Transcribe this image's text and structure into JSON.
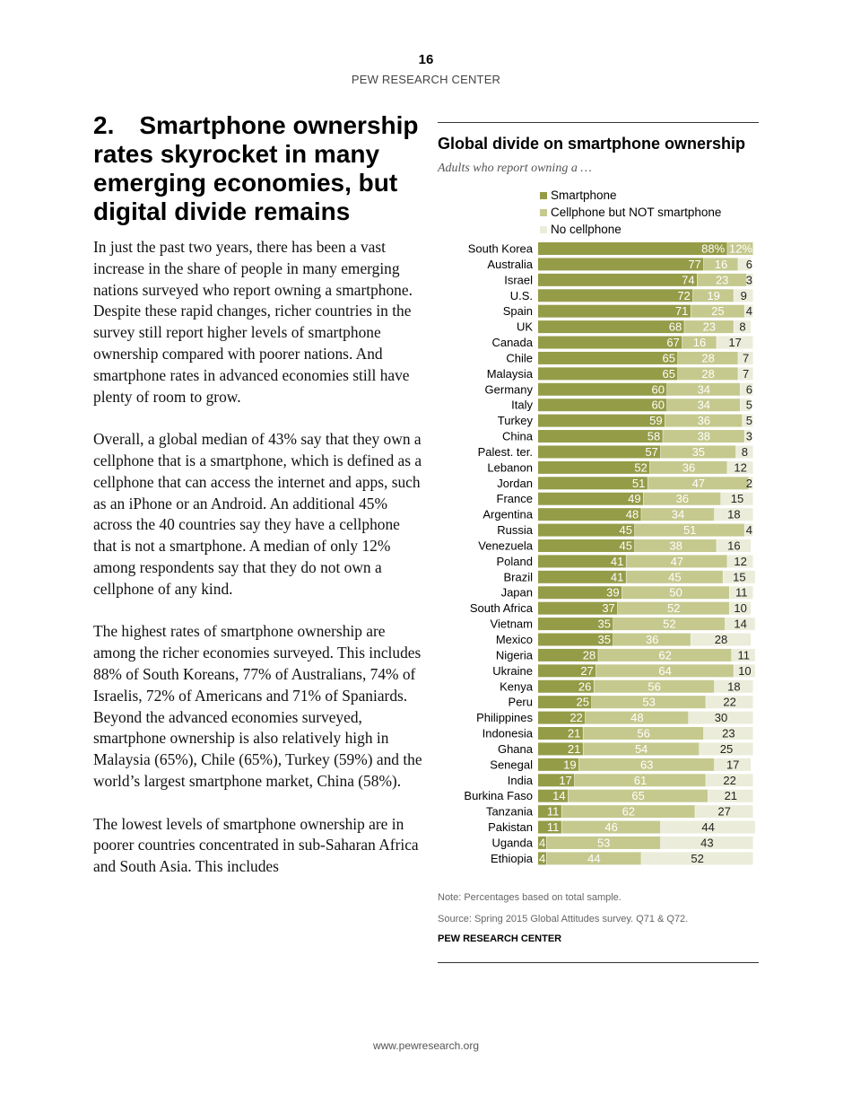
{
  "header": {
    "page_number": "16",
    "organization": "PEW RESEARCH CENTER"
  },
  "article": {
    "heading": "2. Smartphone ownership rates skyrocket in many emerging economies, but digital divide remains",
    "paragraphs": [
      "In just the past two years, there has been a vast increase in the share of people in many emerging nations surveyed who report owning a smartphone. Despite these rapid changes, richer countries in the survey still report higher levels of smartphone ownership compared with poorer nations. And smartphone rates in advanced economies still have plenty of room to grow.",
      "Overall, a global median of 43% say that they own a cellphone that is a smartphone, which is defined as a cellphone that can access the internet and apps, such as an iPhone or an Android. An additional 45% across the 40 countries say they have a cellphone that is not a smartphone. A median of only 12% among respondents say that they do not own a cellphone of any kind.",
      "The highest rates of smartphone ownership are among the richer economies surveyed. This includes 88% of South Koreans, 77% of Australians, 74% of Israelis, 72% of Americans and 71% of Spaniards. Beyond the advanced economies surveyed, smartphone ownership is also relatively high in Malaysia (65%), Chile (65%), Turkey (59%) and the world’s largest smartphone market, China (58%).",
      "The lowest levels of smartphone ownership are in poorer countries concentrated in sub-Saharan Africa and South Asia. This includes"
    ]
  },
  "chart_data": {
    "type": "bar",
    "stacked": true,
    "orientation": "horizontal",
    "title": "Global divide on smartphone ownership",
    "subtitle": "Adults who report owning a …",
    "legend_placement": "top",
    "xlim": [
      0,
      100
    ],
    "categories": [
      "South Korea",
      "Australia",
      "Israel",
      "U.S.",
      "Spain",
      "UK",
      "Canada",
      "Chile",
      "Malaysia",
      "Germany",
      "Italy",
      "Turkey",
      "China",
      "Palest. ter.",
      "Lebanon",
      "Jordan",
      "France",
      "Argentina",
      "Russia",
      "Venezuela",
      "Poland",
      "Brazil",
      "Japan",
      "South Africa",
      "Vietnam",
      "Mexico",
      "Nigeria",
      "Ukraine",
      "Kenya",
      "Peru",
      "Philippines",
      "Indonesia",
      "Ghana",
      "Senegal",
      "India",
      "Burkina Faso",
      "Tanzania",
      "Pakistan",
      "Uganda",
      "Ethiopia"
    ],
    "series": [
      {
        "name": "Smartphone",
        "color": "#959c48",
        "values": [
          88,
          77,
          74,
          72,
          71,
          68,
          67,
          65,
          65,
          60,
          60,
          59,
          58,
          57,
          52,
          51,
          49,
          48,
          45,
          45,
          41,
          41,
          39,
          37,
          35,
          35,
          28,
          27,
          26,
          25,
          22,
          21,
          21,
          19,
          17,
          14,
          11,
          11,
          4,
          4
        ]
      },
      {
        "name": "Cellphone but NOT smartphone",
        "color": "#c5c98e",
        "values": [
          12,
          16,
          23,
          19,
          25,
          23,
          16,
          28,
          28,
          34,
          34,
          36,
          38,
          35,
          36,
          47,
          36,
          34,
          51,
          38,
          47,
          45,
          50,
          52,
          52,
          36,
          62,
          64,
          56,
          53,
          48,
          56,
          54,
          63,
          61,
          65,
          62,
          46,
          53,
          44
        ]
      },
      {
        "name": "No cellphone",
        "color": "#ebedda",
        "values": [
          null,
          6,
          3,
          9,
          4,
          8,
          17,
          7,
          7,
          6,
          5,
          5,
          3,
          8,
          12,
          2,
          15,
          18,
          4,
          16,
          12,
          15,
          11,
          10,
          14,
          28,
          11,
          10,
          18,
          22,
          30,
          23,
          25,
          17,
          22,
          21,
          27,
          44,
          43,
          52
        ]
      }
    ],
    "first_row_suffix": "%"
  },
  "notes": {
    "note": "Note: Percentages based on total sample.",
    "source": "Source: Spring 2015 Global Attitudes survey. Q71 & Q72.",
    "organization": "PEW RESEARCH CENTER"
  },
  "footer": {
    "url": "www.pewresearch.org"
  }
}
